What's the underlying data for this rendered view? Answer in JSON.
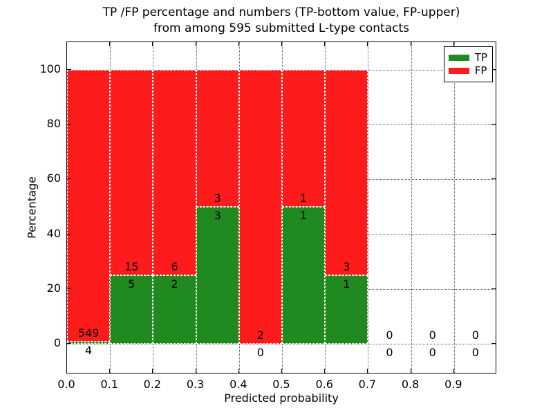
{
  "title": {
    "line1": "TP /FP percentage and numbers (TP-bottom value, FP-upper)",
    "line2": "from among 595 submitted L-type contacts"
  },
  "axes": {
    "xlabel": "Predicted probability",
    "ylabel": "Percentage"
  },
  "legend": {
    "position": "upper right",
    "items": [
      {
        "label": "TP",
        "color": "#208a20"
      },
      {
        "label": "FP",
        "color": "#fd1b1b"
      }
    ]
  },
  "colors": {
    "tp": "#208a20",
    "fp": "#fd1b1b",
    "grid": "#5a5a5a",
    "frame": "#000000",
    "background": "#ffffff",
    "bar_edge": "#ffffff"
  },
  "chart_data": {
    "type": "bar",
    "stacked": true,
    "normalized_to": 100,
    "title": "TP /FP percentage and numbers (TP-bottom value, FP-upper)\nfrom among 595 submitted L-type contacts",
    "xlabel": "Predicted probability",
    "ylabel": "Percentage",
    "xlim": [
      0.0,
      1.0
    ],
    "ylim": [
      -11,
      110
    ],
    "x_ticks": [
      0.0,
      0.1,
      0.2,
      0.3,
      0.4,
      0.5,
      0.6,
      0.7,
      0.8,
      0.9
    ],
    "x_tick_labels": [
      "0.0",
      "0.1",
      "0.2",
      "0.3",
      "0.4",
      "0.5",
      "0.6",
      "0.7",
      "0.8",
      "0.9"
    ],
    "y_ticks": [
      0,
      20,
      40,
      60,
      80,
      100
    ],
    "y_tick_labels": [
      "0",
      "20",
      "40",
      "60",
      "80",
      "100"
    ],
    "grid": "dotted",
    "legend_position": "upper right",
    "bin_width": 0.1,
    "bins": [
      {
        "x_start": 0.0,
        "x_end": 0.1,
        "tp": 4,
        "fp": 549
      },
      {
        "x_start": 0.1,
        "x_end": 0.2,
        "tp": 5,
        "fp": 15
      },
      {
        "x_start": 0.2,
        "x_end": 0.3,
        "tp": 2,
        "fp": 6
      },
      {
        "x_start": 0.3,
        "x_end": 0.4,
        "tp": 3,
        "fp": 3
      },
      {
        "x_start": 0.4,
        "x_end": 0.5,
        "tp": 0,
        "fp": 2
      },
      {
        "x_start": 0.5,
        "x_end": 0.6,
        "tp": 1,
        "fp": 1
      },
      {
        "x_start": 0.6,
        "x_end": 0.7,
        "tp": 1,
        "fp": 3
      },
      {
        "x_start": 0.7,
        "x_end": 0.8,
        "tp": 0,
        "fp": 0
      },
      {
        "x_start": 0.8,
        "x_end": 0.9,
        "tp": 0,
        "fp": 0
      },
      {
        "x_start": 0.9,
        "x_end": 1.0,
        "tp": 0,
        "fp": 0
      }
    ],
    "series": [
      {
        "name": "TP",
        "color": "#208a20",
        "values": [
          4,
          5,
          2,
          3,
          0,
          1,
          1,
          0,
          0,
          0
        ]
      },
      {
        "name": "FP",
        "color": "#fd1b1b",
        "values": [
          549,
          15,
          6,
          3,
          2,
          1,
          3,
          0,
          0,
          0
        ]
      }
    ]
  }
}
